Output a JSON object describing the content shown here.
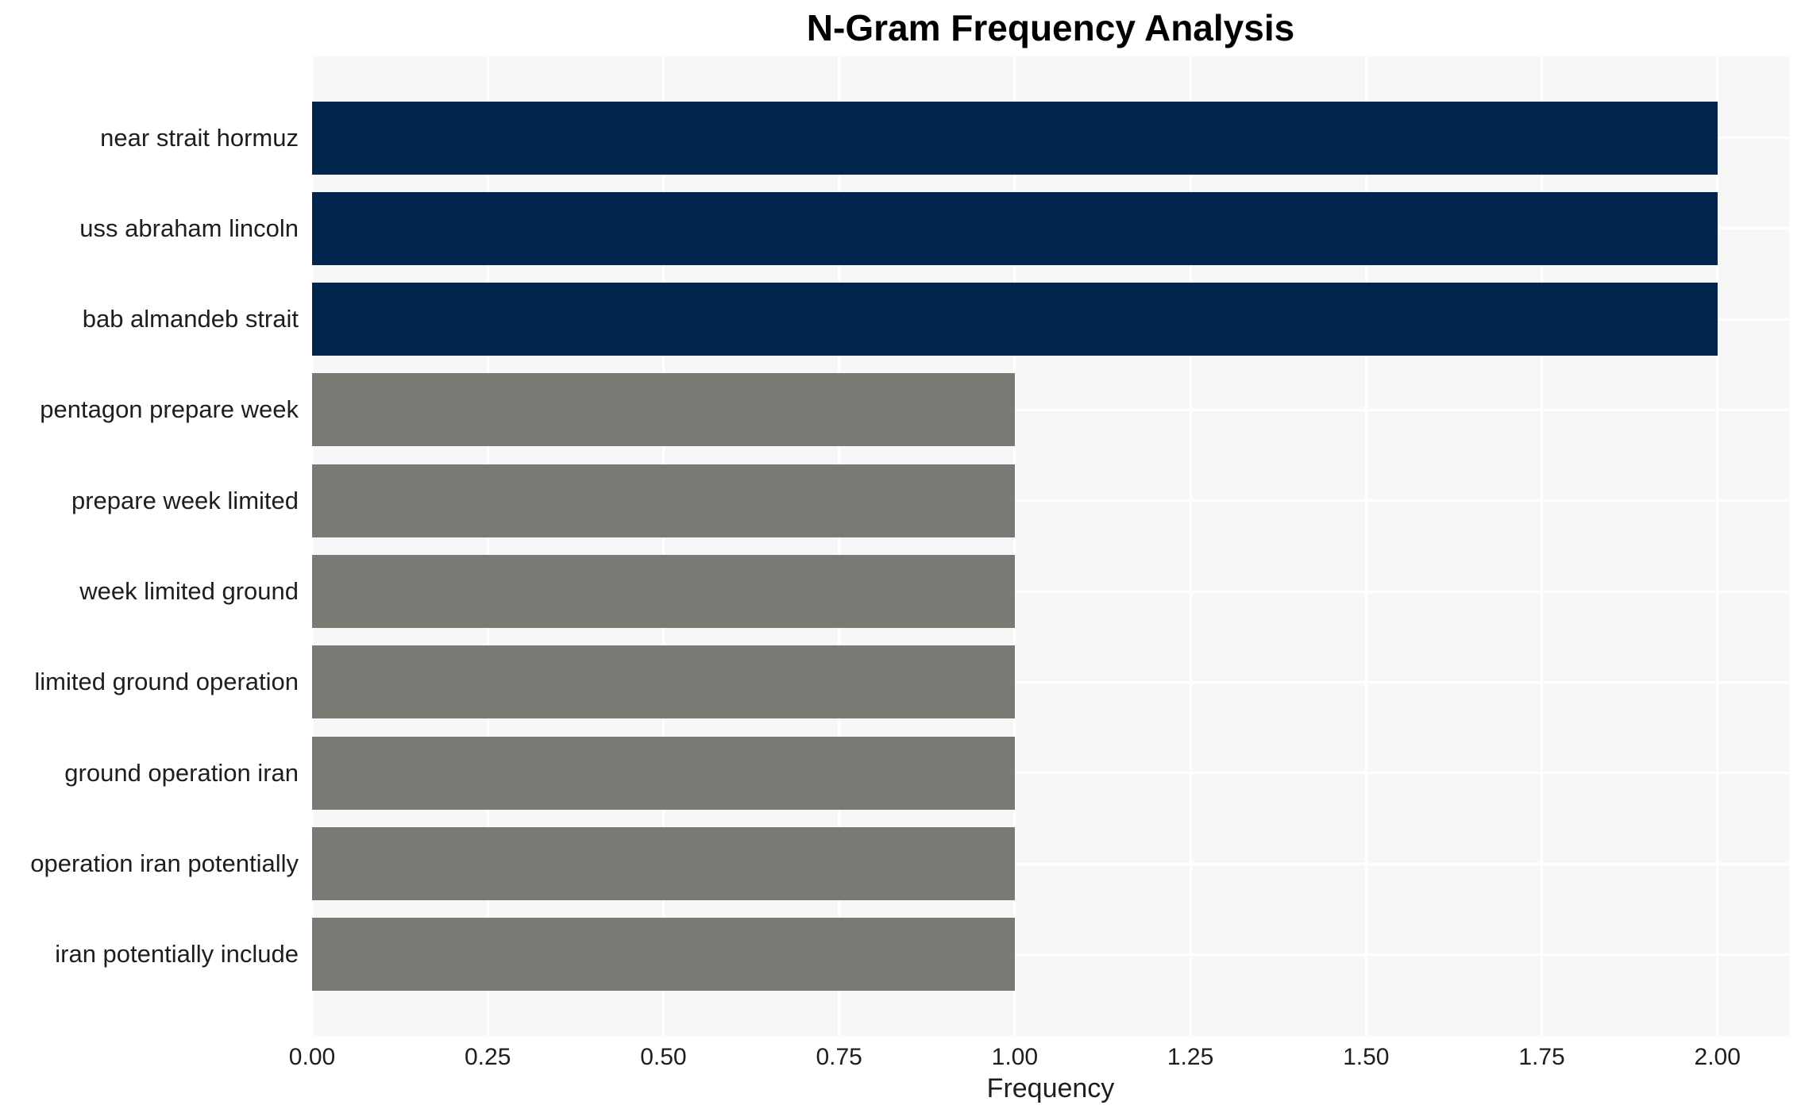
{
  "chart_data": {
    "type": "bar",
    "orientation": "horizontal",
    "title": "N-Gram Frequency Analysis",
    "xlabel": "Frequency",
    "ylabel": "",
    "categories": [
      "near strait hormuz",
      "uss abraham lincoln",
      "bab almandeb strait",
      "pentagon prepare week",
      "prepare week limited",
      "week limited ground",
      "limited ground operation",
      "ground operation iran",
      "operation iran potentially",
      "iran potentially include"
    ],
    "values": [
      2,
      2,
      2,
      1,
      1,
      1,
      1,
      1,
      1,
      1
    ],
    "bar_colors": [
      "#02254e",
      "#02254e",
      "#02254e",
      "#7a7a75",
      "#7a7a75",
      "#7a7a75",
      "#7a7a75",
      "#7a7a75",
      "#7a7a75",
      "#7a7a75"
    ],
    "x_ticks": [
      0.0,
      0.25,
      0.5,
      0.75,
      1.0,
      1.25,
      1.5,
      1.75,
      2.0
    ],
    "x_tick_labels": [
      "0.00",
      "0.25",
      "0.50",
      "0.75",
      "1.00",
      "1.25",
      "1.50",
      "1.75",
      "2.00"
    ],
    "xlim": [
      0,
      2.102
    ],
    "grid": true,
    "legend": false,
    "plot_bg_color": "#f7f7f7",
    "grid_color": "#ffffff",
    "bar_color_high": "#02254e",
    "bar_color_low": "#7a7a75",
    "text_color": "#1e1e1e"
  }
}
